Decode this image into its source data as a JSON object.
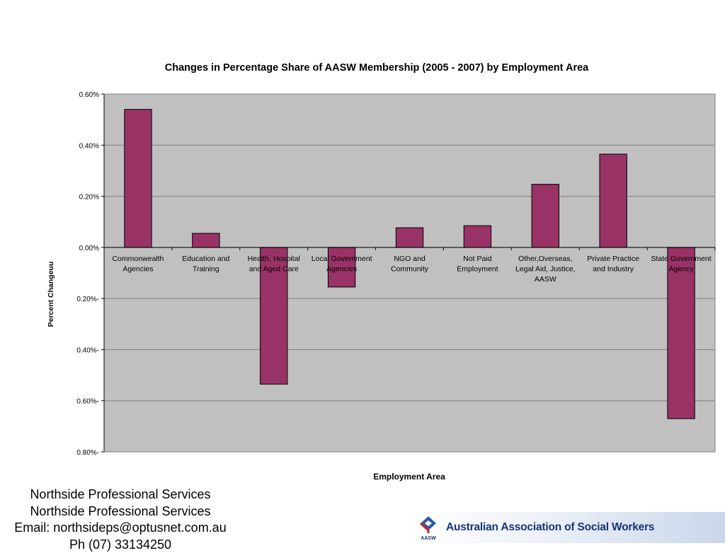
{
  "chart_data": {
    "type": "bar",
    "title": "Changes in Percentage Share of AASW Membership (2005 - 2007) by Employment Area",
    "xlabel": "Employment Area",
    "ylabel": "Percent  Changeuu",
    "ylim": [
      -0.8,
      0.6
    ],
    "yticks": [
      {
        "value": 0.6,
        "label": "0.60%"
      },
      {
        "value": 0.4,
        "label": "0.40%"
      },
      {
        "value": 0.2,
        "label": "0.20%"
      },
      {
        "value": 0.0,
        "label": "0.00%"
      },
      {
        "value": -0.2,
        "label": "0.20%-"
      },
      {
        "value": -0.4,
        "label": "0.40%-"
      },
      {
        "value": -0.6,
        "label": "0.60%-"
      },
      {
        "value": -0.8,
        "label": "0.80%-"
      }
    ],
    "grid": true,
    "legend": "none",
    "bar_color": "#993366",
    "plot_background": "#c0c0c0",
    "categories": [
      [
        "Commonwealth",
        "Agencies"
      ],
      [
        "Education and",
        "Training"
      ],
      [
        "Health, Hospital",
        "and Aged Care"
      ],
      [
        "Local Government",
        "Agencies"
      ],
      [
        "NGO and",
        "Community"
      ],
      [
        "Not Paid",
        "Employment"
      ],
      [
        "Other,Overseas,",
        "Legal Aid, Justice,",
        "AASW"
      ],
      [
        "Private Practice",
        "and Industry"
      ],
      [
        "State Government",
        "Agency"
      ]
    ],
    "values": [
      0.54,
      0.055,
      -0.535,
      -0.155,
      0.077,
      0.085,
      0.247,
      0.365,
      -0.67
    ]
  },
  "footer": {
    "lines": [
      "Northside Professional Services",
      "Northside Professional Services",
      "Email: northsideps@optusnet.com.au",
      "Ph (07) 33134250"
    ]
  },
  "logo": {
    "text": "Australian Association of Social Workers",
    "mark_label": "AASW"
  }
}
